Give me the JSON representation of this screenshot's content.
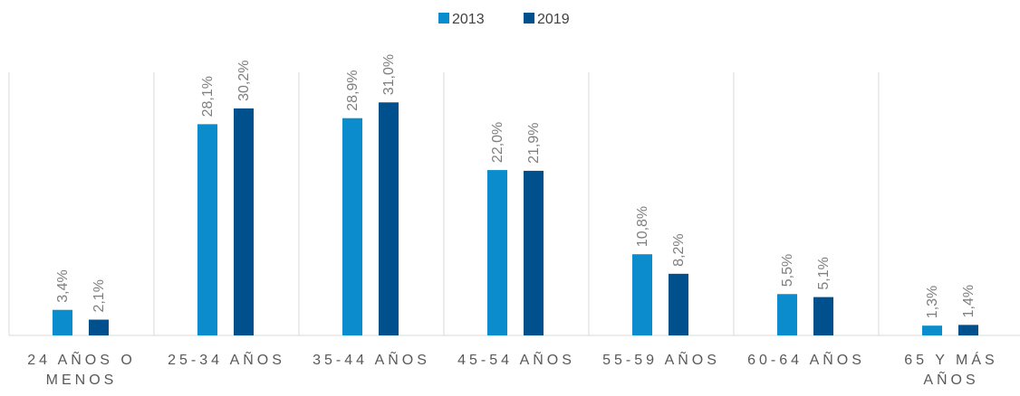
{
  "chart_data": {
    "type": "bar",
    "categories": [
      "24 AÑOS O MENOS",
      "25-34 AÑOS",
      "35-44 AÑOS",
      "45-54 AÑOS",
      "55-59 AÑOS",
      "60-64 AÑOS",
      "65 Y MÁS AÑOS"
    ],
    "series": [
      {
        "name": "2013",
        "color": "#0a8ccd",
        "values": [
          3.4,
          28.1,
          28.9,
          22.0,
          10.8,
          5.5,
          1.3
        ],
        "value_labels": [
          "3,4%",
          "28,1%",
          "28,9%",
          "22,0%",
          "10,8%",
          "5,5%",
          "1,3%"
        ]
      },
      {
        "name": "2019",
        "color": "#00508e",
        "values": [
          2.1,
          30.2,
          31.0,
          21.9,
          8.2,
          5.1,
          1.4
        ],
        "value_labels": [
          "2,1%",
          "30,2%",
          "31,0%",
          "21,9%",
          "8,2%",
          "5,1%",
          "1,4%"
        ]
      }
    ],
    "ylim": [
      0,
      35
    ],
    "legend": "top"
  }
}
